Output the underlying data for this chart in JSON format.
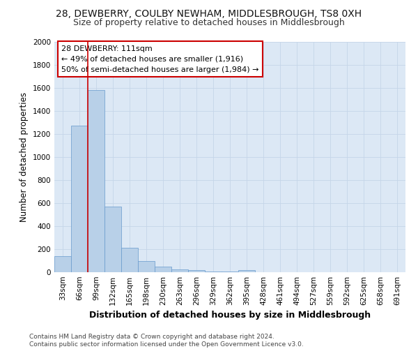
{
  "title1": "28, DEWBERRY, COULBY NEWHAM, MIDDLESBROUGH, TS8 0XH",
  "title2": "Size of property relative to detached houses in Middlesbrough",
  "xlabel": "Distribution of detached houses by size in Middlesbrough",
  "ylabel": "Number of detached properties",
  "categories": [
    "33sqm",
    "66sqm",
    "99sqm",
    "132sqm",
    "165sqm",
    "198sqm",
    "230sqm",
    "263sqm",
    "296sqm",
    "329sqm",
    "362sqm",
    "395sqm",
    "428sqm",
    "461sqm",
    "494sqm",
    "527sqm",
    "559sqm",
    "592sqm",
    "625sqm",
    "658sqm",
    "691sqm"
  ],
  "values": [
    140,
    1270,
    1580,
    570,
    215,
    100,
    50,
    25,
    20,
    5,
    5,
    20,
    0,
    0,
    0,
    0,
    0,
    0,
    0,
    0,
    0
  ],
  "bar_color": "#b8d0e8",
  "bar_edge_color": "#6699cc",
  "red_line_x": 1.5,
  "annotation_text": "28 DEWBERRY: 111sqm\n← 49% of detached houses are smaller (1,916)\n50% of semi-detached houses are larger (1,984) →",
  "annotation_box_color": "#ffffff",
  "annotation_box_edge": "#cc0000",
  "red_line_color": "#cc0000",
  "ylim": [
    0,
    2000
  ],
  "yticks": [
    0,
    200,
    400,
    600,
    800,
    1000,
    1200,
    1400,
    1600,
    1800,
    2000
  ],
  "background_color": "#dce8f5",
  "footer_text": "Contains HM Land Registry data © Crown copyright and database right 2024.\nContains public sector information licensed under the Open Government Licence v3.0.",
  "title1_fontsize": 10,
  "title2_fontsize": 9,
  "xlabel_fontsize": 9,
  "ylabel_fontsize": 8.5,
  "tick_fontsize": 7.5,
  "annotation_fontsize": 8,
  "footer_fontsize": 6.5
}
